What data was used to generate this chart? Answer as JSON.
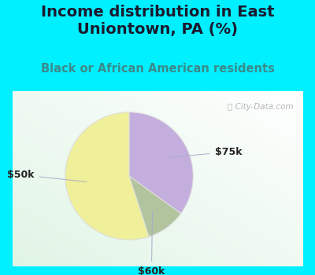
{
  "title": "Income distribution in East\nUniontown, PA (%)",
  "subtitle": "Black or African American residents",
  "slices": [
    {
      "label": "$75k",
      "value": 35,
      "color": "#c4aedd"
    },
    {
      "label": "$60k",
      "value": 10,
      "color": "#b2c49e"
    },
    {
      "label": "$50k",
      "value": 55,
      "color": "#f0f09a"
    }
  ],
  "bg_color": "#00f0ff",
  "chart_bg": "#ffffff",
  "title_color": "#1a1a2e",
  "subtitle_color": "#3a8a8a",
  "watermark": "ⓘ City-Data.com",
  "label_color": "#222222",
  "label_fontsize": 9,
  "title_fontsize": 14,
  "subtitle_fontsize": 10.5
}
